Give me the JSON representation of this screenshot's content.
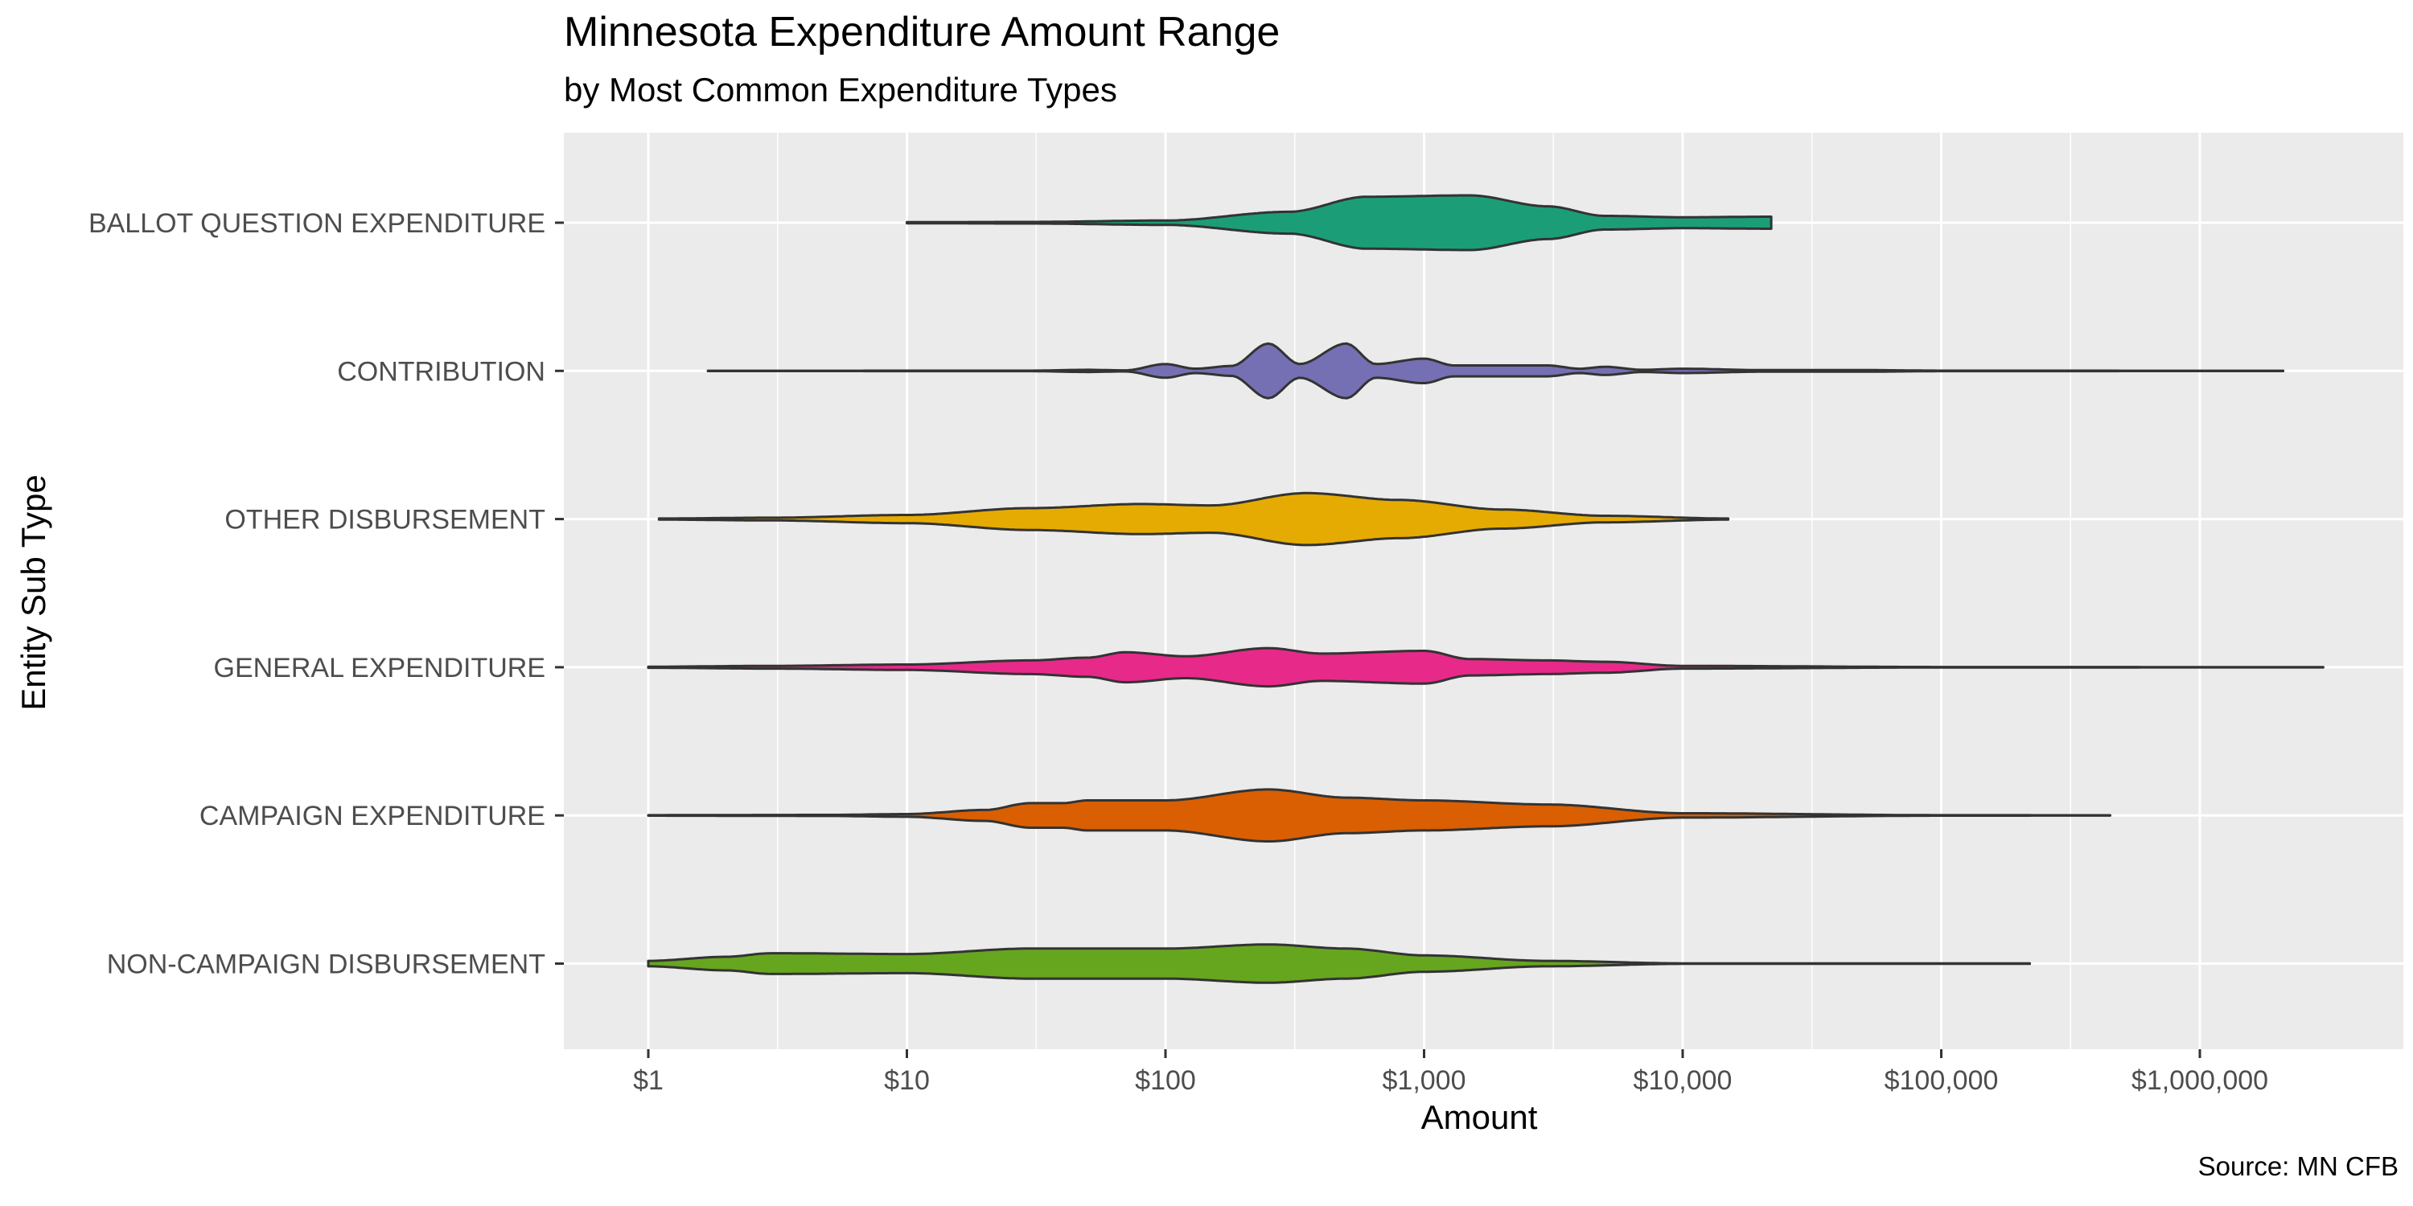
{
  "chart_data": {
    "type": "violin",
    "title": "Minnesota Expenditure Amount Range",
    "subtitle": "by Most Common Expenditure Types",
    "xlabel": "Amount",
    "ylabel": "Entity Sub Type",
    "caption": "Source: MN CFB",
    "x_scale": "log10",
    "xlim": [
      0.5,
      5000000
    ],
    "x_ticks": [
      1,
      10,
      100,
      1000,
      10000,
      100000,
      1000000
    ],
    "x_tick_labels": [
      "$1",
      "$10",
      "$100",
      "$1,000",
      "$10,000",
      "$100,000",
      "$1,000,000"
    ],
    "grid": true,
    "legend": "none",
    "categories": [
      "BALLOT QUESTION EXPENDITURE",
      "CONTRIBUTION",
      "OTHER DISBURSEMENT",
      "GENERAL EXPENDITURE",
      "CAMPAIGN EXPENDITURE",
      "NON-CAMPAIGN DISBURSEMENT"
    ],
    "series": [
      {
        "category": "BALLOT QUESTION EXPENDITURE",
        "color": "#1B9E77",
        "min": 10,
        "max": 22000,
        "density": [
          [
            10,
            0.02
          ],
          [
            30,
            0.03
          ],
          [
            100,
            0.08
          ],
          [
            300,
            0.4
          ],
          [
            600,
            0.95
          ],
          [
            1500,
            1.0
          ],
          [
            3000,
            0.6
          ],
          [
            5000,
            0.25
          ],
          [
            10000,
            0.2
          ],
          [
            22000,
            0.22
          ]
        ]
      },
      {
        "category": "CONTRIBUTION",
        "color": "#7570B3",
        "min": 1.7,
        "max": 2100000,
        "density": [
          [
            1.7,
            0.005
          ],
          [
            30,
            0.01
          ],
          [
            50,
            0.04
          ],
          [
            70,
            0.02
          ],
          [
            100,
            0.25
          ],
          [
            130,
            0.08
          ],
          [
            180,
            0.18
          ],
          [
            250,
            1.0
          ],
          [
            330,
            0.25
          ],
          [
            500,
            1.0
          ],
          [
            650,
            0.25
          ],
          [
            1000,
            0.45
          ],
          [
            1300,
            0.2
          ],
          [
            2000,
            0.2
          ],
          [
            3000,
            0.2
          ],
          [
            4000,
            0.08
          ],
          [
            5000,
            0.15
          ],
          [
            7000,
            0.04
          ],
          [
            10000,
            0.08
          ],
          [
            20000,
            0.03
          ],
          [
            50000,
            0.03
          ],
          [
            100000,
            0.01
          ],
          [
            2100000,
            0.005
          ]
        ]
      },
      {
        "category": "OTHER DISBURSEMENT",
        "color": "#E6AB02",
        "min": 1.1,
        "max": 15000,
        "density": [
          [
            1.1,
            0.02
          ],
          [
            3,
            0.05
          ],
          [
            10,
            0.15
          ],
          [
            30,
            0.4
          ],
          [
            80,
            0.55
          ],
          [
            150,
            0.5
          ],
          [
            350,
            0.95
          ],
          [
            800,
            0.7
          ],
          [
            2000,
            0.35
          ],
          [
            5000,
            0.12
          ],
          [
            15000,
            0.02
          ]
        ]
      },
      {
        "category": "GENERAL EXPENDITURE",
        "color": "#E7298A",
        "min": 1,
        "max": 3000000,
        "density": [
          [
            1,
            0.02
          ],
          [
            3,
            0.05
          ],
          [
            10,
            0.1
          ],
          [
            30,
            0.25
          ],
          [
            50,
            0.35
          ],
          [
            70,
            0.55
          ],
          [
            120,
            0.4
          ],
          [
            250,
            0.7
          ],
          [
            400,
            0.5
          ],
          [
            1000,
            0.6
          ],
          [
            1500,
            0.3
          ],
          [
            3000,
            0.25
          ],
          [
            5000,
            0.2
          ],
          [
            10000,
            0.05
          ],
          [
            100000,
            0.01
          ],
          [
            3000000,
            0.005
          ]
        ]
      },
      {
        "category": "CAMPAIGN EXPENDITURE",
        "color": "#D95F02",
        "min": 1,
        "max": 450000,
        "density": [
          [
            1,
            0.01
          ],
          [
            5,
            0.02
          ],
          [
            10,
            0.05
          ],
          [
            20,
            0.2
          ],
          [
            30,
            0.45
          ],
          [
            40,
            0.45
          ],
          [
            50,
            0.55
          ],
          [
            100,
            0.55
          ],
          [
            250,
            0.95
          ],
          [
            500,
            0.65
          ],
          [
            1000,
            0.55
          ],
          [
            3000,
            0.4
          ],
          [
            10000,
            0.08
          ],
          [
            100000,
            0.01
          ],
          [
            450000,
            0.005
          ]
        ]
      },
      {
        "category": "NON-CAMPAIGN DISBURSEMENT",
        "color": "#66A61E",
        "min": 1,
        "max": 220000,
        "density": [
          [
            1,
            0.1
          ],
          [
            2,
            0.25
          ],
          [
            3,
            0.38
          ],
          [
            10,
            0.35
          ],
          [
            30,
            0.55
          ],
          [
            100,
            0.55
          ],
          [
            250,
            0.7
          ],
          [
            500,
            0.55
          ],
          [
            1000,
            0.3
          ],
          [
            3000,
            0.1
          ],
          [
            10000,
            0.01
          ],
          [
            220000,
            0.005
          ]
        ]
      }
    ]
  }
}
